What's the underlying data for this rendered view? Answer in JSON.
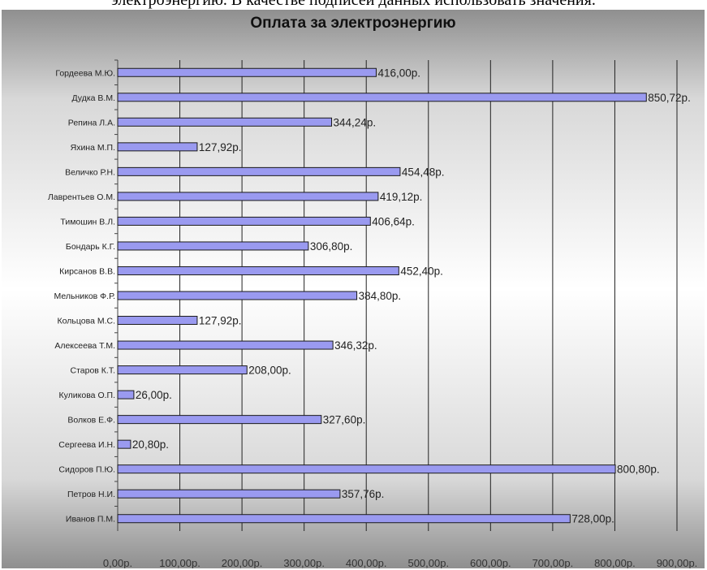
{
  "page": {
    "caption": "электроэнергию. В качестве подписей данных использовать значения."
  },
  "chart_data": {
    "type": "bar",
    "orientation": "horizontal",
    "title": "Оплата за электроэнергию",
    "xlabel": "",
    "ylabel": "",
    "xlim": [
      0,
      900
    ],
    "grid": true,
    "legend": "none",
    "colors": {
      "bar": "#9a9af0",
      "bar_border": "#1a1a1a",
      "grid": "#222222",
      "text": "#222222"
    },
    "categories": [
      "Гордеева М.Ю.",
      "Дудка В.М.",
      "Репина Л.А.",
      "Яхина М.П.",
      "Величко Р.Н.",
      "Лаврентьев О.М.",
      "Тимошин В.Л.",
      "Бондарь К.Г.",
      "Кирсанов В.В.",
      "Мельников Ф.Р.",
      "Кольцова М.С.",
      "Алексеева Т.М.",
      "Старов К.Т.",
      "Куликова О.П.",
      "Волков Е.Ф.",
      "Сергеева И.Н.",
      "Сидоров П.Ю.",
      "Петров Н.И.",
      "Иванов П.М."
    ],
    "values": [
      416.0,
      850.72,
      344.24,
      127.92,
      454.48,
      419.12,
      406.64,
      306.8,
      452.4,
      384.8,
      127.92,
      346.32,
      208.0,
      26.0,
      327.6,
      20.8,
      800.8,
      357.76,
      728.0
    ],
    "data_labels": [
      "416,00р.",
      "850,72р.",
      "344,24р.",
      "127,92р.",
      "454,48р.",
      "419,12р.",
      "406,64р.",
      "306,80р.",
      "452,40р.",
      "384,80р.",
      "127,92р.",
      "346,32р.",
      "208,00р.",
      "26,00р.",
      "327,60р.",
      "20,80р.",
      "800,80р.",
      "357,76р.",
      "728,00р."
    ],
    "ticks": [
      0,
      100,
      200,
      300,
      400,
      500,
      600,
      700,
      800,
      900
    ],
    "tick_labels": [
      "0,00р.",
      "100,00р.",
      "200,00р.",
      "300,00р.",
      "400,00р.",
      "500,00р.",
      "600,00р.",
      "700,00р.",
      "800,00р.",
      "900,00р."
    ]
  }
}
